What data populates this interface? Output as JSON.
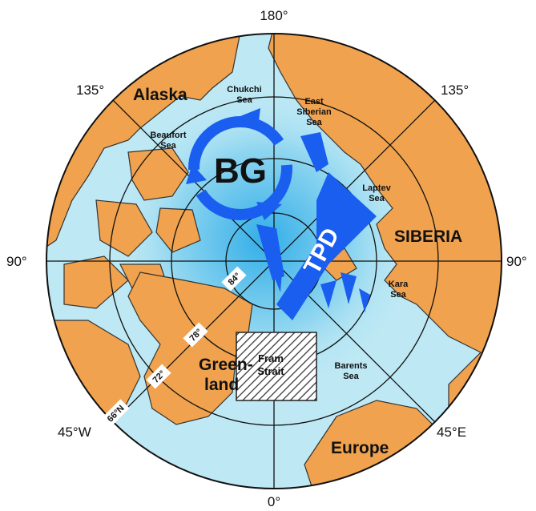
{
  "graticule": {
    "longitudes": {
      "top": "180°",
      "upper_left": "135°",
      "upper_right": "135°",
      "left": "90°",
      "right": "90°",
      "lower_left": "45°W",
      "lower_right": "45°E",
      "bottom": "0°"
    },
    "latitudes": [
      "84°",
      "78°",
      "72°",
      "66°N"
    ]
  },
  "regions": {
    "alaska": "Alaska",
    "siberia": "SIBERIA",
    "greenland": [
      "Green-",
      "land"
    ],
    "europe": "Europe"
  },
  "seas": {
    "chukchi": [
      "Chukchi",
      "Sea"
    ],
    "east_siberian": [
      "East",
      "Siberian",
      "Sea"
    ],
    "beaufort": [
      "Beaufort",
      "Sea"
    ],
    "laptev": [
      "Laptev",
      "Sea"
    ],
    "kara": [
      "Kara",
      "Sea"
    ],
    "barents": [
      "Barents",
      "Sea"
    ],
    "fram": [
      "Fram",
      "Strait"
    ]
  },
  "currents": {
    "bg": "BG",
    "tpd": "TPD"
  }
}
